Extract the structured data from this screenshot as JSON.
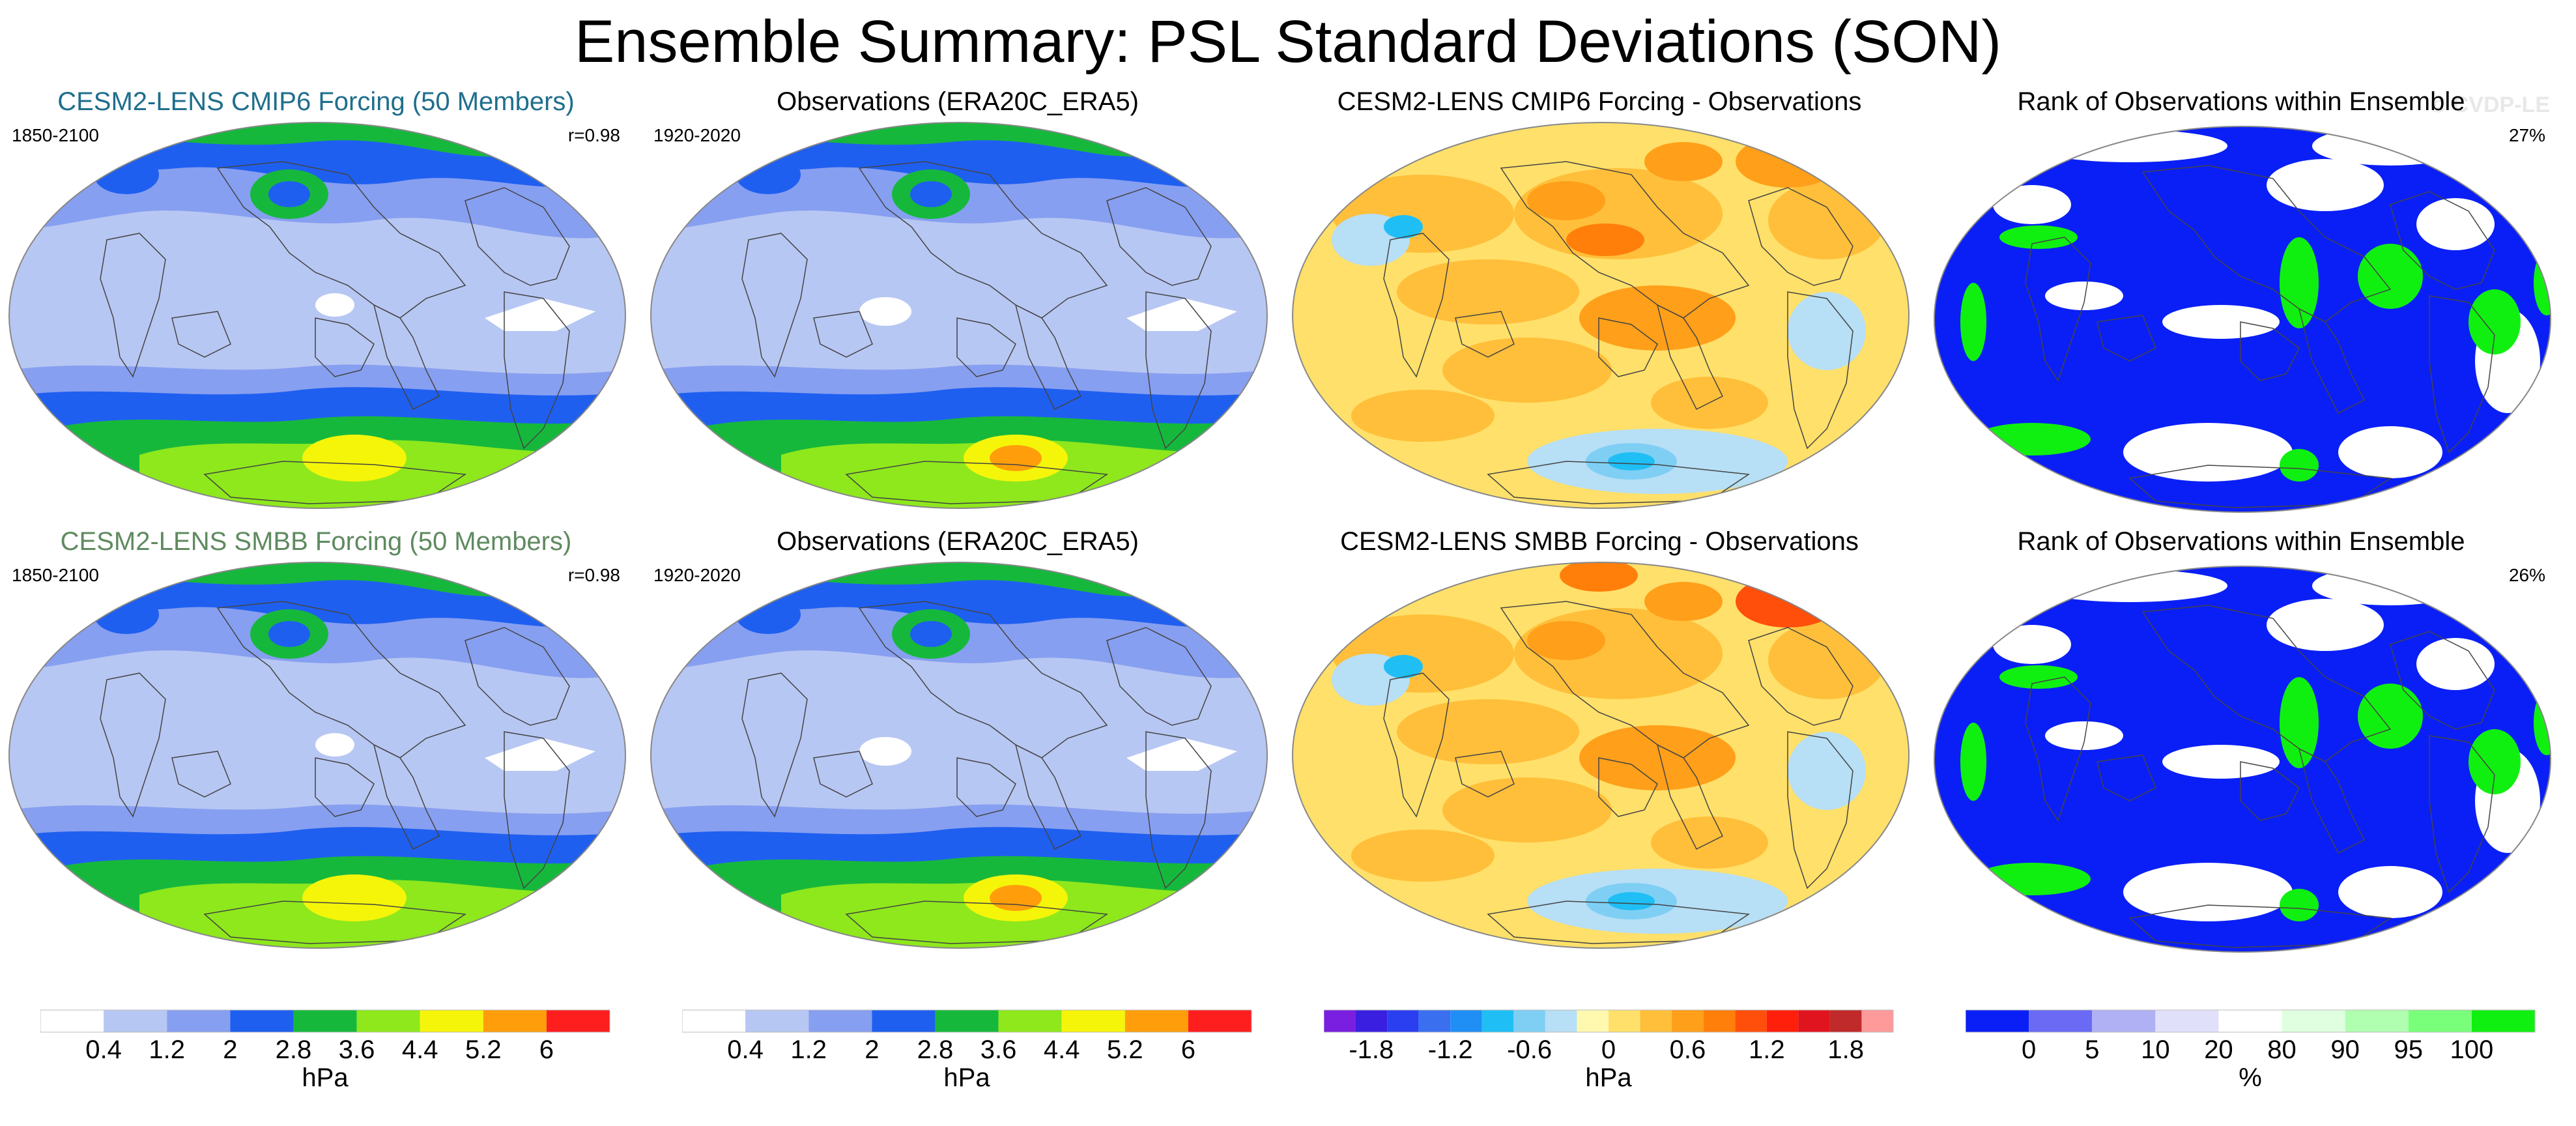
{
  "title": "Ensemble Summary: PSL Standard Deviations (SON)",
  "watermark": "© CVDP-LE",
  "colors": {
    "cmip6_title": "#1f6e8c",
    "smbb_title": "#5f8a5f",
    "ocean_low": "#b7c7f3",
    "watermark": "#e8e8e8"
  },
  "panels": [
    {
      "id": "cmip6-mean",
      "title": "CESM2-LENS CMIP6 Forcing (50 Members)",
      "left": "1850-2100",
      "right": "r=0.98",
      "kind": "std",
      "title_color": "#1f6e8c"
    },
    {
      "id": "obs-1",
      "title": "Observations (ERA20C_ERA5)",
      "left": "1920-2020",
      "right": "",
      "kind": "std_obs",
      "title_color": "#000000"
    },
    {
      "id": "cmip6-diff",
      "title": "CESM2-LENS CMIP6 Forcing - Observations",
      "left": "",
      "right": "",
      "kind": "diff",
      "title_color": "#000000"
    },
    {
      "id": "rank-1",
      "title": "Rank of Observations within Ensemble",
      "left": "",
      "right": "27%",
      "kind": "rank",
      "title_color": "#000000"
    },
    {
      "id": "smbb-mean",
      "title": "CESM2-LENS SMBB Forcing (50 Members)",
      "left": "1850-2100",
      "right": "r=0.98",
      "kind": "std",
      "title_color": "#5f8a5f"
    },
    {
      "id": "obs-2",
      "title": "Observations (ERA20C_ERA5)",
      "left": "1920-2020",
      "right": "",
      "kind": "std_obs",
      "title_color": "#000000"
    },
    {
      "id": "smbb-diff",
      "title": "CESM2-LENS SMBB Forcing - Observations",
      "left": "",
      "right": "",
      "kind": "diff",
      "title_color": "#000000"
    },
    {
      "id": "rank-2",
      "title": "Rank of Observations within Ensemble",
      "left": "",
      "right": "26%",
      "kind": "rank",
      "title_color": "#000000"
    }
  ],
  "colorbars": [
    {
      "id": "std-bar-1",
      "unit": "hPa",
      "colors": [
        "#ffffff",
        "#b7c7f3",
        "#879ff0",
        "#1f5ff0",
        "#16b83c",
        "#8ee81c",
        "#f5f50a",
        "#ff9e0a",
        "#ff1e1e"
      ],
      "ticks": [
        "0.4",
        "1.2",
        "2",
        "2.8",
        "3.6",
        "4.4",
        "5.2",
        "6"
      ]
    },
    {
      "id": "std-bar-2",
      "unit": "hPa",
      "colors": [
        "#ffffff",
        "#b7c7f3",
        "#879ff0",
        "#1f5ff0",
        "#16b83c",
        "#8ee81c",
        "#f5f50a",
        "#ff9e0a",
        "#ff1e1e"
      ],
      "ticks": [
        "0.4",
        "1.2",
        "2",
        "2.8",
        "3.6",
        "4.4",
        "5.2",
        "6"
      ]
    },
    {
      "id": "diff-bar",
      "unit": "hPa",
      "colors": [
        "#7a1fe0",
        "#3a1fe0",
        "#2a3ff0",
        "#3a6ff0",
        "#1f8ff5",
        "#1fbff5",
        "#7fcff5",
        "#b7dff5",
        "#fff9b0",
        "#ffe06a",
        "#ffbf3a",
        "#ff9f1a",
        "#ff7f0a",
        "#ff4f0a",
        "#ff1f0a",
        "#e0141e",
        "#c02a2a",
        "#ff9a9a"
      ],
      "ticks": [
        "-1.8",
        "-1.2",
        "-0.6",
        "0",
        "0.6",
        "1.2",
        "1.8"
      ]
    },
    {
      "id": "rank-bar",
      "unit": "%",
      "colors": [
        "#0a1ff5",
        "#6a6af5",
        "#b0b0f5",
        "#e0e0fa",
        "#ffffff",
        "#e0ffe0",
        "#b0ffb0",
        "#7aff7a",
        "#10f010"
      ],
      "ticks": [
        "0",
        "5",
        "10",
        "20",
        "80",
        "90",
        "95",
        "100"
      ]
    }
  ]
}
